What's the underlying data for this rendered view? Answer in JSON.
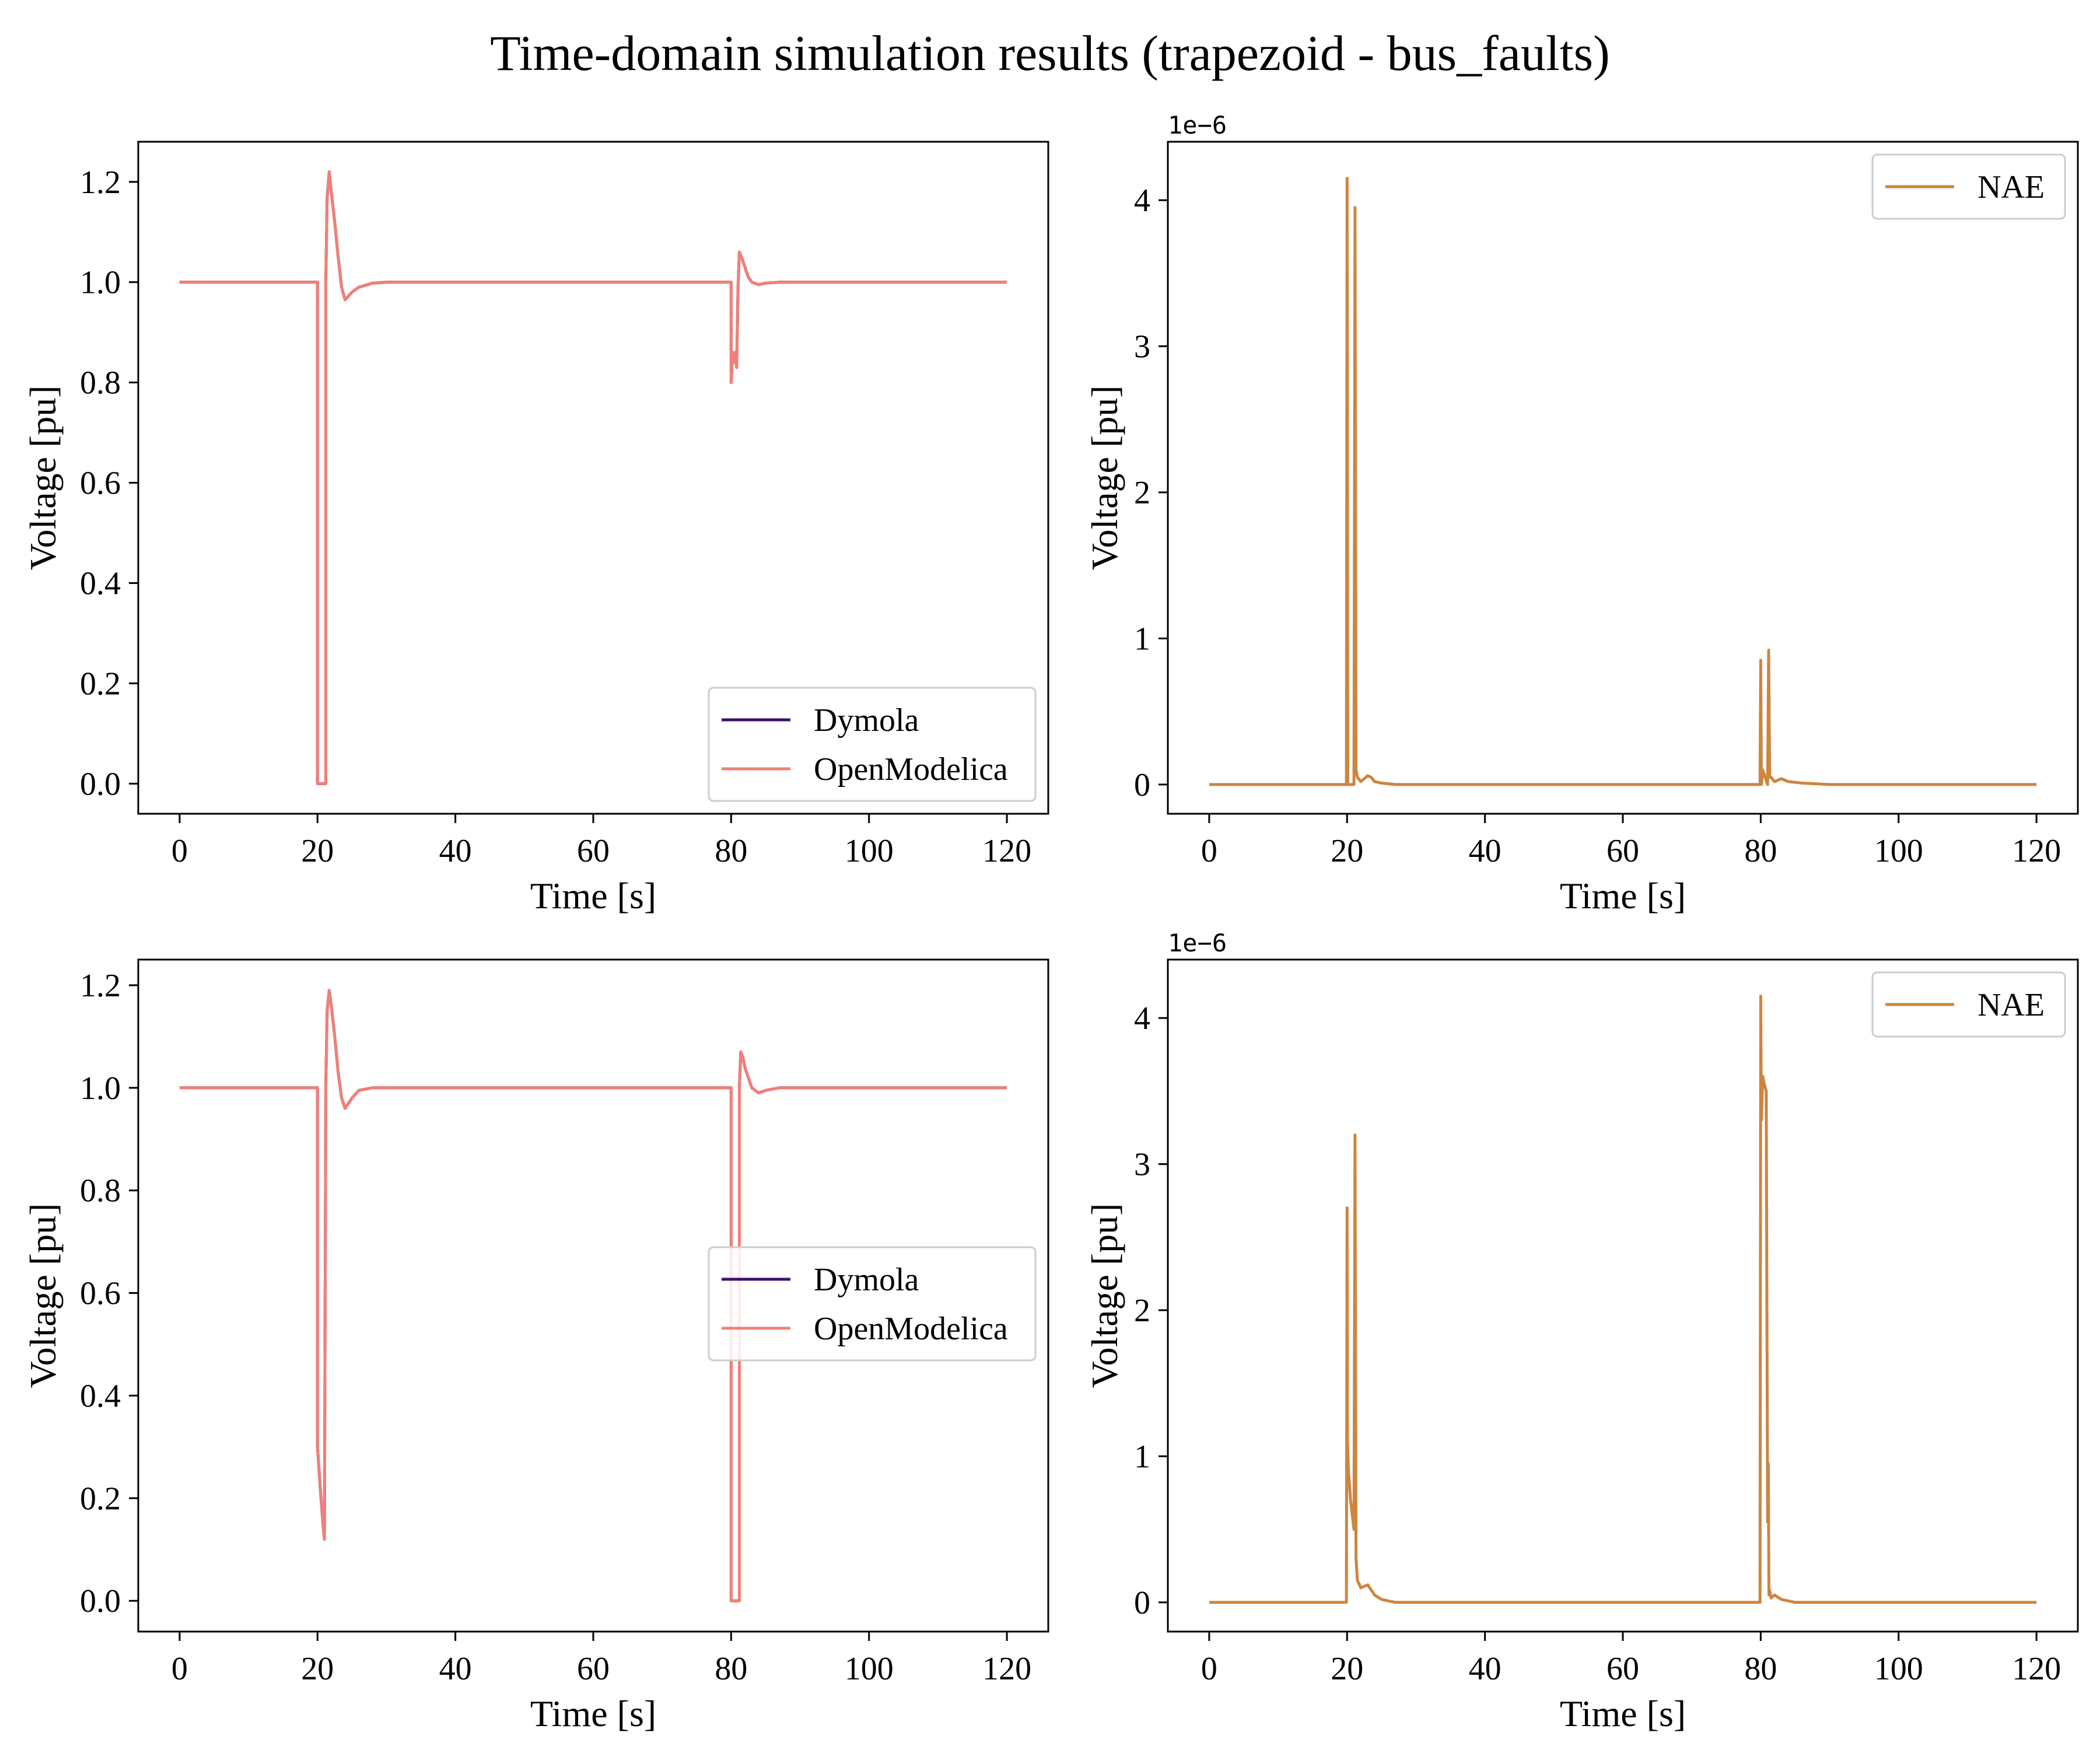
{
  "figure": {
    "title": "Time-domain simulation results (trapezoid - bus_faults)"
  },
  "colors": {
    "dymola": "#3b0f70",
    "openmodelica": "#f08078",
    "nae": "#cd853f",
    "axes": "#000000",
    "background": "#ffffff"
  },
  "chart_data": [
    {
      "type": "line",
      "xlabel": "Time [s]",
      "ylabel": "Voltage [pu]",
      "xlim": [
        -6,
        126
      ],
      "ylim": [
        -0.06,
        1.28
      ],
      "xticks": [
        0,
        20,
        40,
        60,
        80,
        100,
        120
      ],
      "yticks": [
        0.0,
        0.2,
        0.4,
        0.6,
        0.8,
        1.0,
        1.2
      ],
      "ytick_labels": [
        "0.0",
        "0.2",
        "0.4",
        "0.6",
        "0.8",
        "1.0",
        "1.2"
      ],
      "grid": false,
      "legend": {
        "position": "lower-right"
      },
      "series": [
        {
          "name": "Dymola",
          "x": [
            0,
            20,
            20,
            21.2,
            21.2,
            21.4,
            21.7,
            22.0,
            22.5,
            23.0,
            23.5,
            24.0,
            25.0,
            26.0,
            28.0,
            30.0,
            40.0,
            80.0,
            80.0,
            80.2,
            80.4,
            80.6,
            80.8,
            81.0,
            81.2,
            81.5,
            82.0,
            82.5,
            83.0,
            84.0,
            85.0,
            87.0,
            90.0,
            100.0,
            120.0
          ],
          "y": [
            1.0,
            1.0,
            0.0,
            0.0,
            1.0,
            1.17,
            1.22,
            1.18,
            1.12,
            1.05,
            0.99,
            0.965,
            0.98,
            0.99,
            0.998,
            1.0,
            1.0,
            1.0,
            0.8,
            0.86,
            0.84,
            0.86,
            0.83,
            0.99,
            1.06,
            1.05,
            1.03,
            1.01,
            1.0,
            0.995,
            0.998,
            1.0,
            1.0,
            1.0,
            1.0
          ]
        },
        {
          "name": "OpenModelica",
          "x": [
            0,
            20,
            20,
            21.2,
            21.2,
            21.4,
            21.7,
            22.0,
            22.5,
            23.0,
            23.5,
            24.0,
            25.0,
            26.0,
            28.0,
            30.0,
            40.0,
            80.0,
            80.0,
            80.2,
            80.4,
            80.6,
            80.8,
            81.0,
            81.2,
            81.5,
            82.0,
            82.5,
            83.0,
            84.0,
            85.0,
            87.0,
            90.0,
            100.0,
            120.0
          ],
          "y": [
            1.0,
            1.0,
            0.0,
            0.0,
            1.0,
            1.17,
            1.22,
            1.18,
            1.12,
            1.05,
            0.99,
            0.965,
            0.98,
            0.99,
            0.998,
            1.0,
            1.0,
            1.0,
            0.8,
            0.86,
            0.84,
            0.86,
            0.83,
            0.99,
            1.06,
            1.05,
            1.03,
            1.01,
            1.0,
            0.995,
            0.998,
            1.0,
            1.0,
            1.0,
            1.0
          ]
        }
      ]
    },
    {
      "type": "line",
      "xlabel": "Time [s]",
      "ylabel": "Voltage [pu]",
      "xlim": [
        -6,
        126
      ],
      "ylim": [
        -0.2,
        4.4
      ],
      "offset_text": "1e−6",
      "xticks": [
        0,
        20,
        40,
        60,
        80,
        100,
        120
      ],
      "yticks": [
        0,
        1,
        2,
        3,
        4
      ],
      "ytick_labels": [
        "0",
        "1",
        "2",
        "3",
        "4"
      ],
      "grid": false,
      "legend": {
        "position": "upper-right"
      },
      "series": [
        {
          "name": "NAE",
          "x": [
            0,
            19.9,
            20.0,
            20.1,
            20.3,
            21.0,
            21.15,
            21.3,
            21.5,
            22.0,
            23.0,
            23.5,
            24.0,
            25.0,
            27.0,
            30.0,
            79.9,
            80.0,
            80.1,
            80.3,
            81.0,
            81.15,
            81.3,
            81.5,
            82.0,
            83.0,
            84.0,
            86.0,
            90.0,
            120.0
          ],
          "y": [
            0,
            0,
            4.15,
            0,
            0,
            0,
            3.95,
            0.1,
            0.05,
            0.02,
            0.06,
            0.05,
            0.02,
            0.01,
            0.0,
            0.0,
            0,
            0.85,
            0,
            0.1,
            0,
            0.92,
            0.05,
            0.05,
            0.02,
            0.04,
            0.02,
            0.01,
            0.0,
            0.0
          ]
        }
      ]
    },
    {
      "type": "line",
      "xlabel": "Time [s]",
      "ylabel": "Voltage [pu]",
      "xlim": [
        -6,
        126
      ],
      "ylim": [
        -0.06,
        1.25
      ],
      "xticks": [
        0,
        20,
        40,
        60,
        80,
        100,
        120
      ],
      "yticks": [
        0.0,
        0.2,
        0.4,
        0.6,
        0.8,
        1.0,
        1.2
      ],
      "ytick_labels": [
        "0.0",
        "0.2",
        "0.4",
        "0.6",
        "0.8",
        "1.0",
        "1.2"
      ],
      "grid": false,
      "legend": {
        "position": "center-right"
      },
      "series": [
        {
          "name": "Dymola",
          "x": [
            0,
            20,
            20,
            20.4,
            20.8,
            21.0,
            21.2,
            21.4,
            21.7,
            22.0,
            22.5,
            23.0,
            23.5,
            24.0,
            25.0,
            26.0,
            28.0,
            30.0,
            40.0,
            80.0,
            80.0,
            81.2,
            81.2,
            81.4,
            81.7,
            82.0,
            82.5,
            83.0,
            84.0,
            85.0,
            87.0,
            90.0,
            100.0,
            120.0
          ],
          "y": [
            1.0,
            1.0,
            0.3,
            0.22,
            0.15,
            0.12,
            1.0,
            1.15,
            1.19,
            1.16,
            1.1,
            1.03,
            0.98,
            0.96,
            0.98,
            0.995,
            1.0,
            1.0,
            1.0,
            1.0,
            0.0,
            0.0,
            1.0,
            1.07,
            1.06,
            1.04,
            1.02,
            1.0,
            0.99,
            0.995,
            1.0,
            1.0,
            1.0,
            1.0
          ]
        },
        {
          "name": "OpenModelica",
          "x": [
            0,
            20,
            20,
            20.4,
            20.8,
            21.0,
            21.2,
            21.4,
            21.7,
            22.0,
            22.5,
            23.0,
            23.5,
            24.0,
            25.0,
            26.0,
            28.0,
            30.0,
            40.0,
            80.0,
            80.0,
            81.2,
            81.2,
            81.4,
            81.7,
            82.0,
            82.5,
            83.0,
            84.0,
            85.0,
            87.0,
            90.0,
            100.0,
            120.0
          ],
          "y": [
            1.0,
            1.0,
            0.3,
            0.22,
            0.15,
            0.12,
            1.0,
            1.15,
            1.19,
            1.16,
            1.1,
            1.03,
            0.98,
            0.96,
            0.98,
            0.995,
            1.0,
            1.0,
            1.0,
            1.0,
            0.0,
            0.0,
            1.0,
            1.07,
            1.06,
            1.04,
            1.02,
            1.0,
            0.99,
            0.995,
            1.0,
            1.0,
            1.0,
            1.0
          ]
        }
      ]
    },
    {
      "type": "line",
      "xlabel": "Time [s]",
      "ylabel": "Voltage [pu]",
      "xlim": [
        -6,
        126
      ],
      "ylim": [
        -0.2,
        4.4
      ],
      "offset_text": "1e−6",
      "xticks": [
        0,
        20,
        40,
        60,
        80,
        100,
        120
      ],
      "yticks": [
        0,
        1,
        2,
        3,
        4
      ],
      "ytick_labels": [
        "0",
        "1",
        "2",
        "3",
        "4"
      ],
      "grid": false,
      "legend": {
        "position": "upper-right"
      },
      "series": [
        {
          "name": "NAE",
          "x": [
            0,
            19.9,
            20.0,
            20.05,
            20.2,
            20.5,
            21.0,
            21.15,
            21.3,
            21.5,
            22.0,
            23.0,
            24.0,
            25.0,
            27.0,
            30.0,
            79.9,
            80.0,
            80.1,
            80.3,
            80.5,
            80.8,
            81.0,
            81.1,
            81.2,
            81.3,
            81.5,
            82.0,
            83.0,
            85.0,
            90.0,
            120.0
          ],
          "y": [
            0,
            0,
            2.7,
            1.1,
            0.9,
            0.7,
            0.5,
            3.2,
            0.3,
            0.15,
            0.1,
            0.12,
            0.05,
            0.02,
            0.0,
            0.0,
            0,
            4.15,
            3.3,
            3.6,
            3.55,
            3.5,
            0.55,
            0.95,
            0.05,
            0.08,
            0.03,
            0.05,
            0.02,
            0.0,
            0.0,
            0.0
          ]
        }
      ]
    }
  ]
}
